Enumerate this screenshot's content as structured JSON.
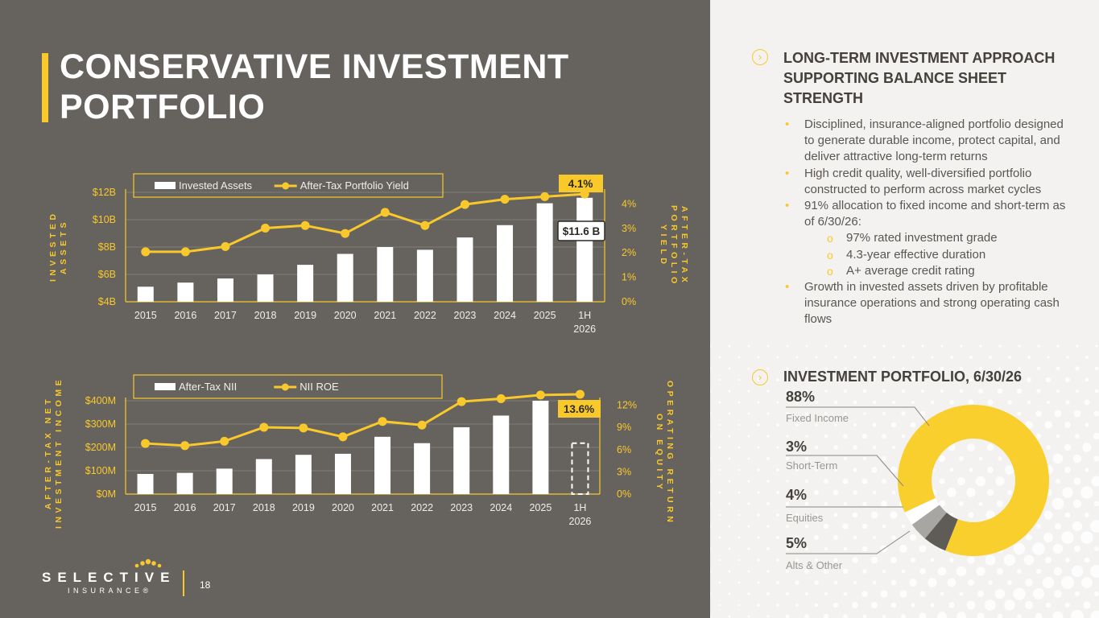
{
  "title": "CONSERVATIVE INVESTMENT PORTFOLIO",
  "page_number": "18",
  "logo": {
    "name": "SELECTIVE",
    "sub": "INSURANCE®"
  },
  "chart_data": [
    {
      "type": "bar",
      "categories": [
        "2015",
        "2016",
        "2017",
        "2018",
        "2019",
        "2020",
        "2021",
        "2022",
        "2023",
        "2024",
        "2025",
        "1H 2026"
      ],
      "series": [
        {
          "name": "Invested Assets",
          "type": "bar",
          "axis": "left",
          "values": [
            5.1,
            5.4,
            5.7,
            6.0,
            6.7,
            7.5,
            8.0,
            7.8,
            8.7,
            9.6,
            11.2,
            11.6
          ]
        },
        {
          "name": "After-Tax Portfolio Yield",
          "type": "line",
          "axis": "right",
          "values": [
            1.9,
            1.9,
            2.1,
            2.8,
            2.9,
            2.6,
            3.4,
            2.9,
            3.7,
            3.9,
            4.0,
            4.1
          ]
        }
      ],
      "ylabel": "INVESTED ASSETS",
      "ylabel_right": "AFTER-TAX PORTFOLIO YIELD",
      "yticks": [
        "$4B",
        "$6B",
        "$8B",
        "$10B",
        "$12B"
      ],
      "y2ticks": [
        "0%",
        "1%",
        "2%",
        "3%",
        "4%"
      ],
      "ylim": [
        4,
        12
      ],
      "y2lim": [
        0,
        4.5
      ],
      "callouts": {
        "yield": "4.1%",
        "assets": "$11.6 B"
      },
      "legend_position": "top-left"
    },
    {
      "type": "bar",
      "categories": [
        "2015",
        "2016",
        "2017",
        "2018",
        "2019",
        "2020",
        "2021",
        "2022",
        "2023",
        "2024",
        "2025",
        "1H 2026"
      ],
      "series": [
        {
          "name": "After-Tax NII",
          "type": "bar",
          "axis": "left",
          "values": [
            95,
            100,
            120,
            165,
            185,
            190,
            270,
            240,
            315,
            370,
            440,
            240
          ]
        },
        {
          "name": "NII ROE",
          "type": "line",
          "axis": "right",
          "values": [
            6.9,
            6.6,
            7.2,
            9.1,
            9.0,
            7.8,
            9.9,
            9.4,
            12.6,
            13.0,
            13.5,
            13.6
          ]
        }
      ],
      "ylabel": "AFTER-TAX NET INVESTMENT INCOME",
      "ylabel_right": "OPERATING RETURN ON EQUITY",
      "yticks": [
        "$0M",
        "$100M",
        "$200M",
        "$300M",
        "$400M"
      ],
      "y2ticks": [
        "0%",
        "3%",
        "6%",
        "9%",
        "12%"
      ],
      "ylim": [
        0,
        440
      ],
      "y2lim": [
        0,
        13.2
      ],
      "callouts": {
        "roe": "13.6%"
      },
      "last_bar_style": "dashed",
      "legend_position": "top-left"
    },
    {
      "type": "pie",
      "title": "INVESTMENT PORTFOLIO, 6/30/26",
      "slices": [
        {
          "label": "Fixed Income",
          "pct": "88%",
          "value": 88,
          "color": "#f9cf2e"
        },
        {
          "label": "Short-Term",
          "pct": "3%",
          "value": 3,
          "color": "#ffffff"
        },
        {
          "label": "Equities",
          "pct": "4%",
          "value": 4,
          "color": "#a8a6a3"
        },
        {
          "label": "Alts & Other",
          "pct": "5%",
          "value": 5,
          "color": "#5f5b57"
        }
      ]
    }
  ],
  "right_panel": {
    "section1_title": "LONG-TERM INVESTMENT APPROACH SUPPORTING BALANCE SHEET STRENGTH",
    "bullets": [
      {
        "text": "Disciplined, insurance-aligned portfolio designed to generate durable income, protect capital, and deliver attractive long-term returns",
        "sub": false
      },
      {
        "text": "High credit quality, well-diversified portfolio constructed to perform across market cycles",
        "sub": false
      },
      {
        "text": "91% allocation to fixed income and short-term as of 6/30/26:",
        "sub": false
      },
      {
        "text": "97% rated investment grade",
        "sub": true
      },
      {
        "text": "4.3-year effective duration",
        "sub": true
      },
      {
        "text": "A+ average credit rating",
        "sub": true
      },
      {
        "text": "Growth in invested assets driven by profitable insurance operations and strong operating cash flows",
        "sub": false
      }
    ],
    "section2_title": "INVESTMENT PORTFOLIO, 6/30/26"
  },
  "colors": {
    "accent": "#f9c92b",
    "panel_dark": "#66625e",
    "panel_light": "#f3f2f0"
  }
}
